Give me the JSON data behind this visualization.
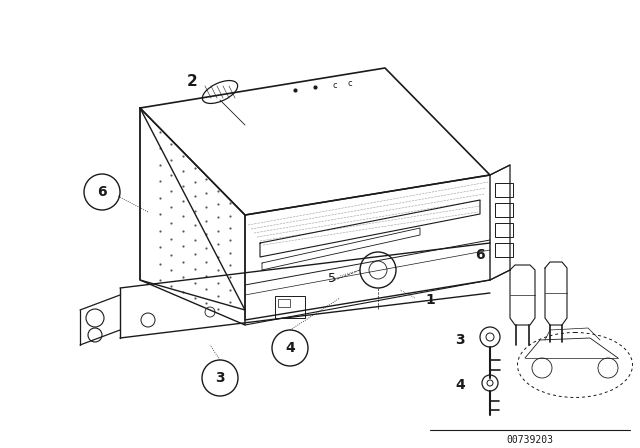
{
  "bg_color": "#ffffff",
  "line_color": "#1a1a1a",
  "part_number": "00739203",
  "figsize": [
    6.4,
    4.48
  ],
  "dpi": 100
}
